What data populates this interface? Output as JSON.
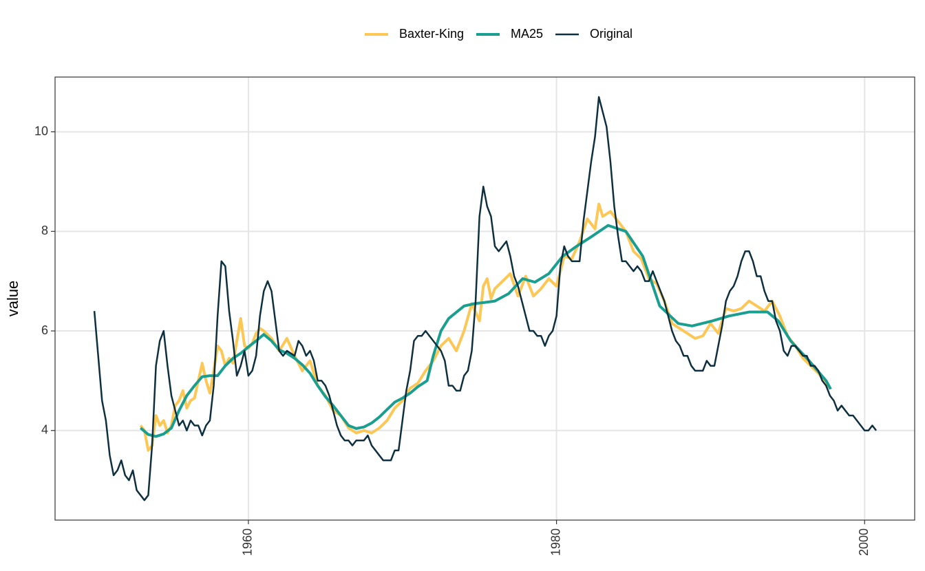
{
  "chart_data": {
    "type": "line",
    "y_label": "value",
    "xlim": [
      1947.45,
      2003.25
    ],
    "xticks": [
      1960,
      1980,
      2000
    ],
    "ylim": [
      2.2,
      11.1
    ],
    "yticks": [
      4,
      6,
      8,
      10
    ],
    "grid": true,
    "legend": "top",
    "series": [
      {
        "name": "Baxter-King",
        "color": "#fcc755",
        "x": [
          1953.0,
          1953.25,
          1953.5,
          1953.75,
          1954.0,
          1954.25,
          1954.5,
          1954.75,
          1955.0,
          1955.25,
          1955.5,
          1955.75,
          1956.0,
          1956.25,
          1956.5,
          1956.75,
          1957.0,
          1957.25,
          1957.5,
          1957.75,
          1958.0,
          1958.25,
          1958.5,
          1958.75,
          1959.0,
          1959.25,
          1959.5,
          1959.75,
          1960.0,
          1960.25,
          1960.5,
          1960.75,
          1961.0,
          1961.5,
          1962.0,
          1962.5,
          1963.0,
          1963.5,
          1964.0,
          1964.5,
          1965.0,
          1965.5,
          1966.0,
          1966.5,
          1967.0,
          1967.5,
          1968.0,
          1968.5,
          1969.0,
          1969.5,
          1970.0,
          1970.5,
          1971.0,
          1971.5,
          1972.0,
          1972.5,
          1973.0,
          1973.5,
          1974.0,
          1974.5,
          1975.0,
          1975.25,
          1975.5,
          1975.75,
          1976.0,
          1976.5,
          1977.0,
          1977.5,
          1978.0,
          1978.5,
          1979.0,
          1979.5,
          1980.0,
          1980.5,
          1981.0,
          1981.5,
          1982.0,
          1982.5,
          1982.75,
          1983.0,
          1983.5,
          1984.0,
          1984.5,
          1985.0,
          1985.5,
          1986.0,
          1986.5,
          1987.0,
          1987.5,
          1988.0,
          1988.5,
          1989.0,
          1989.5,
          1990.0,
          1990.5,
          1991.0,
          1991.5,
          1992.0,
          1992.5,
          1993.0,
          1993.5,
          1994.0,
          1994.5,
          1995.0,
          1995.5,
          1996.0,
          1996.5,
          1997.0,
          1997.5,
          1997.75
        ],
        "values": [
          4.1,
          4.0,
          3.6,
          3.7,
          4.3,
          4.1,
          4.2,
          3.95,
          4.1,
          4.5,
          4.6,
          4.8,
          4.45,
          4.6,
          4.65,
          5.0,
          5.35,
          5.0,
          4.75,
          5.2,
          5.7,
          5.6,
          5.3,
          5.45,
          5.35,
          5.8,
          6.25,
          5.7,
          5.65,
          5.75,
          5.95,
          6.05,
          6.0,
          5.85,
          5.6,
          5.85,
          5.5,
          5.2,
          5.4,
          4.9,
          4.7,
          4.4,
          4.3,
          4.05,
          3.95,
          4.0,
          3.95,
          4.05,
          4.2,
          4.45,
          4.6,
          4.85,
          4.95,
          5.2,
          5.4,
          5.7,
          5.85,
          5.6,
          6.0,
          6.55,
          6.2,
          6.9,
          7.05,
          6.65,
          6.85,
          7.0,
          7.15,
          6.7,
          7.1,
          6.7,
          6.85,
          7.05,
          6.9,
          7.5,
          7.45,
          7.8,
          8.25,
          8.05,
          8.55,
          8.3,
          8.4,
          8.2,
          8.0,
          7.6,
          7.45,
          7.05,
          6.95,
          6.6,
          6.15,
          6.05,
          5.95,
          5.85,
          5.9,
          6.15,
          5.95,
          6.45,
          6.4,
          6.45,
          6.6,
          6.5,
          6.4,
          6.6,
          6.3,
          5.9,
          5.7,
          5.45,
          5.3,
          5.15,
          4.95,
          4.85
        ]
      },
      {
        "name": "MA25",
        "color": "#1a9e90",
        "x": [
          1953.0,
          1953.5,
          1954.0,
          1954.5,
          1955.0,
          1955.5,
          1956.0,
          1956.5,
          1957.0,
          1957.5,
          1958.0,
          1958.5,
          1959.0,
          1959.5,
          1960.0,
          1960.5,
          1961.0,
          1961.5,
          1962.0,
          1962.5,
          1963.0,
          1963.5,
          1964.0,
          1964.5,
          1965.0,
          1965.5,
          1966.0,
          1966.5,
          1967.0,
          1967.5,
          1968.0,
          1968.5,
          1969.0,
          1969.5,
          1970.0,
          1970.5,
          1971.0,
          1971.6,
          1972.0,
          1972.5,
          1973.0,
          1973.6,
          1974.0,
          1974.7,
          1975.3,
          1976.0,
          1976.9,
          1977.8,
          1978.6,
          1979.5,
          1980.4,
          1981.3,
          1982.3,
          1983.35,
          1984.5,
          1985.6,
          1986.7,
          1987.9,
          1988.8,
          1990.1,
          1991.2,
          1992.5,
          1993.7,
          1994.4,
          1995.2,
          1996.4,
          1997.5,
          1997.8
        ],
        "values": [
          4.05,
          3.92,
          3.88,
          3.93,
          4.05,
          4.4,
          4.7,
          4.9,
          5.08,
          5.1,
          5.1,
          5.3,
          5.45,
          5.55,
          5.68,
          5.8,
          5.93,
          5.8,
          5.62,
          5.55,
          5.45,
          5.32,
          5.15,
          4.9,
          4.68,
          4.5,
          4.3,
          4.1,
          4.04,
          4.07,
          4.15,
          4.27,
          4.42,
          4.57,
          4.65,
          4.75,
          4.88,
          5.0,
          5.5,
          6.0,
          6.25,
          6.4,
          6.5,
          6.55,
          6.57,
          6.6,
          6.75,
          7.05,
          6.98,
          7.15,
          7.5,
          7.7,
          7.9,
          8.12,
          8.0,
          7.5,
          6.5,
          6.15,
          6.1,
          6.2,
          6.3,
          6.38,
          6.38,
          6.2,
          5.8,
          5.4,
          5.0,
          4.83
        ]
      },
      {
        "name": "Original",
        "color": "#0d2f3f",
        "x": [
          1950.0,
          1950.5,
          1950.75,
          1951.0,
          1951.25,
          1951.5,
          1951.75,
          1952.0,
          1952.25,
          1952.5,
          1952.75,
          1953.0,
          1953.25,
          1953.5,
          1953.75,
          1954.0,
          1954.25,
          1954.5,
          1954.75,
          1955.0,
          1955.5,
          1955.75,
          1956.0,
          1956.25,
          1956.5,
          1956.75,
          1957.0,
          1957.25,
          1957.5,
          1957.75,
          1958.0,
          1958.25,
          1958.5,
          1958.75,
          1959.0,
          1959.25,
          1959.5,
          1959.75,
          1960.0,
          1960.25,
          1960.5,
          1960.75,
          1961.0,
          1961.25,
          1961.5,
          1961.75,
          1962.0,
          1962.25,
          1962.5,
          1963.0,
          1963.25,
          1963.5,
          1963.75,
          1964.0,
          1964.25,
          1964.5,
          1964.75,
          1965.0,
          1965.25,
          1965.5,
          1965.75,
          1966.0,
          1966.25,
          1966.5,
          1966.75,
          1967.0,
          1967.5,
          1967.75,
          1968.0,
          1968.5,
          1968.75,
          1969.25,
          1969.5,
          1969.75,
          1970.0,
          1970.25,
          1970.5,
          1970.75,
          1971.0,
          1971.25,
          1971.5,
          1972.0,
          1972.5,
          1972.75,
          1973.0,
          1973.25,
          1973.5,
          1973.75,
          1974.0,
          1974.25,
          1974.5,
          1974.75,
          1975.0,
          1975.25,
          1975.5,
          1975.75,
          1976.0,
          1976.25,
          1976.75,
          1977.0,
          1977.25,
          1977.5,
          1977.75,
          1978.0,
          1978.25,
          1978.5,
          1978.75,
          1979.0,
          1979.25,
          1979.5,
          1979.75,
          1980.0,
          1980.25,
          1980.5,
          1980.75,
          1981.0,
          1981.25,
          1981.5,
          1981.75,
          1982.0,
          1982.25,
          1982.5,
          1982.75,
          1983.0,
          1983.25,
          1983.5,
          1983.75,
          1984.0,
          1984.25,
          1984.5,
          1984.75,
          1985.0,
          1985.25,
          1985.5,
          1985.75,
          1986.0,
          1986.25,
          1986.5,
          1986.75,
          1987.0,
          1987.25,
          1987.5,
          1987.75,
          1988.0,
          1988.25,
          1988.5,
          1988.75,
          1989.0,
          1989.5,
          1989.75,
          1990.0,
          1990.25,
          1990.5,
          1990.75,
          1991.0,
          1991.25,
          1991.5,
          1991.75,
          1992.0,
          1992.25,
          1992.5,
          1992.75,
          1993.0,
          1993.25,
          1993.5,
          1993.75,
          1994.0,
          1994.25,
          1994.5,
          1994.75,
          1995.0,
          1995.25,
          1995.5,
          1995.75,
          1996.0,
          1996.25,
          1996.5,
          1996.75,
          1997.0,
          1997.25,
          1997.5,
          1997.75,
          1998.0,
          1998.25,
          1998.5,
          1998.75,
          1999.0,
          1999.25,
          1999.5,
          1999.75,
          2000.0,
          2000.25,
          2000.5,
          2000.75
        ],
        "values": [
          6.4,
          4.6,
          4.2,
          3.5,
          3.1,
          3.2,
          3.4,
          3.1,
          3.0,
          3.2,
          2.8,
          2.7,
          2.6,
          2.7,
          3.7,
          5.3,
          5.8,
          6.0,
          5.3,
          4.7,
          4.1,
          4.2,
          4.0,
          4.2,
          4.1,
          4.1,
          3.9,
          4.1,
          4.2,
          4.9,
          6.3,
          7.4,
          7.3,
          6.4,
          5.8,
          5.1,
          5.3,
          5.6,
          5.1,
          5.2,
          5.5,
          6.3,
          6.8,
          7.0,
          6.8,
          6.2,
          5.6,
          5.5,
          5.6,
          5.5,
          5.8,
          5.7,
          5.5,
          5.6,
          5.4,
          5.0,
          5.0,
          4.9,
          4.7,
          4.4,
          4.1,
          3.9,
          3.8,
          3.8,
          3.7,
          3.8,
          3.8,
          3.9,
          3.7,
          3.5,
          3.4,
          3.4,
          3.6,
          3.6,
          4.2,
          4.8,
          5.2,
          5.8,
          5.9,
          5.9,
          6.0,
          5.8,
          5.6,
          5.4,
          4.9,
          4.9,
          4.8,
          4.8,
          5.1,
          5.2,
          5.6,
          6.6,
          8.3,
          8.9,
          8.5,
          8.3,
          7.7,
          7.6,
          7.8,
          7.5,
          7.1,
          6.9,
          6.6,
          6.3,
          6.0,
          6.0,
          5.9,
          5.9,
          5.7,
          5.9,
          6.0,
          6.3,
          7.3,
          7.7,
          7.5,
          7.4,
          7.4,
          7.4,
          8.2,
          8.8,
          9.4,
          9.9,
          10.7,
          10.4,
          10.1,
          9.4,
          8.5,
          7.9,
          7.4,
          7.4,
          7.3,
          7.2,
          7.3,
          7.2,
          7.0,
          7.0,
          7.2,
          7.0,
          6.8,
          6.6,
          6.3,
          6.0,
          5.8,
          5.7,
          5.5,
          5.5,
          5.3,
          5.2,
          5.2,
          5.4,
          5.3,
          5.3,
          5.7,
          6.1,
          6.6,
          6.8,
          6.9,
          7.1,
          7.4,
          7.6,
          7.6,
          7.4,
          7.1,
          7.1,
          6.8,
          6.6,
          6.6,
          6.2,
          6.0,
          5.6,
          5.5,
          5.7,
          5.7,
          5.6,
          5.5,
          5.5,
          5.3,
          5.3,
          5.2,
          5.0,
          4.9,
          4.7,
          4.6,
          4.4,
          4.5,
          4.4,
          4.3,
          4.3,
          4.2,
          4.1,
          4.0,
          4.0,
          4.1,
          4.0
        ]
      }
    ]
  }
}
